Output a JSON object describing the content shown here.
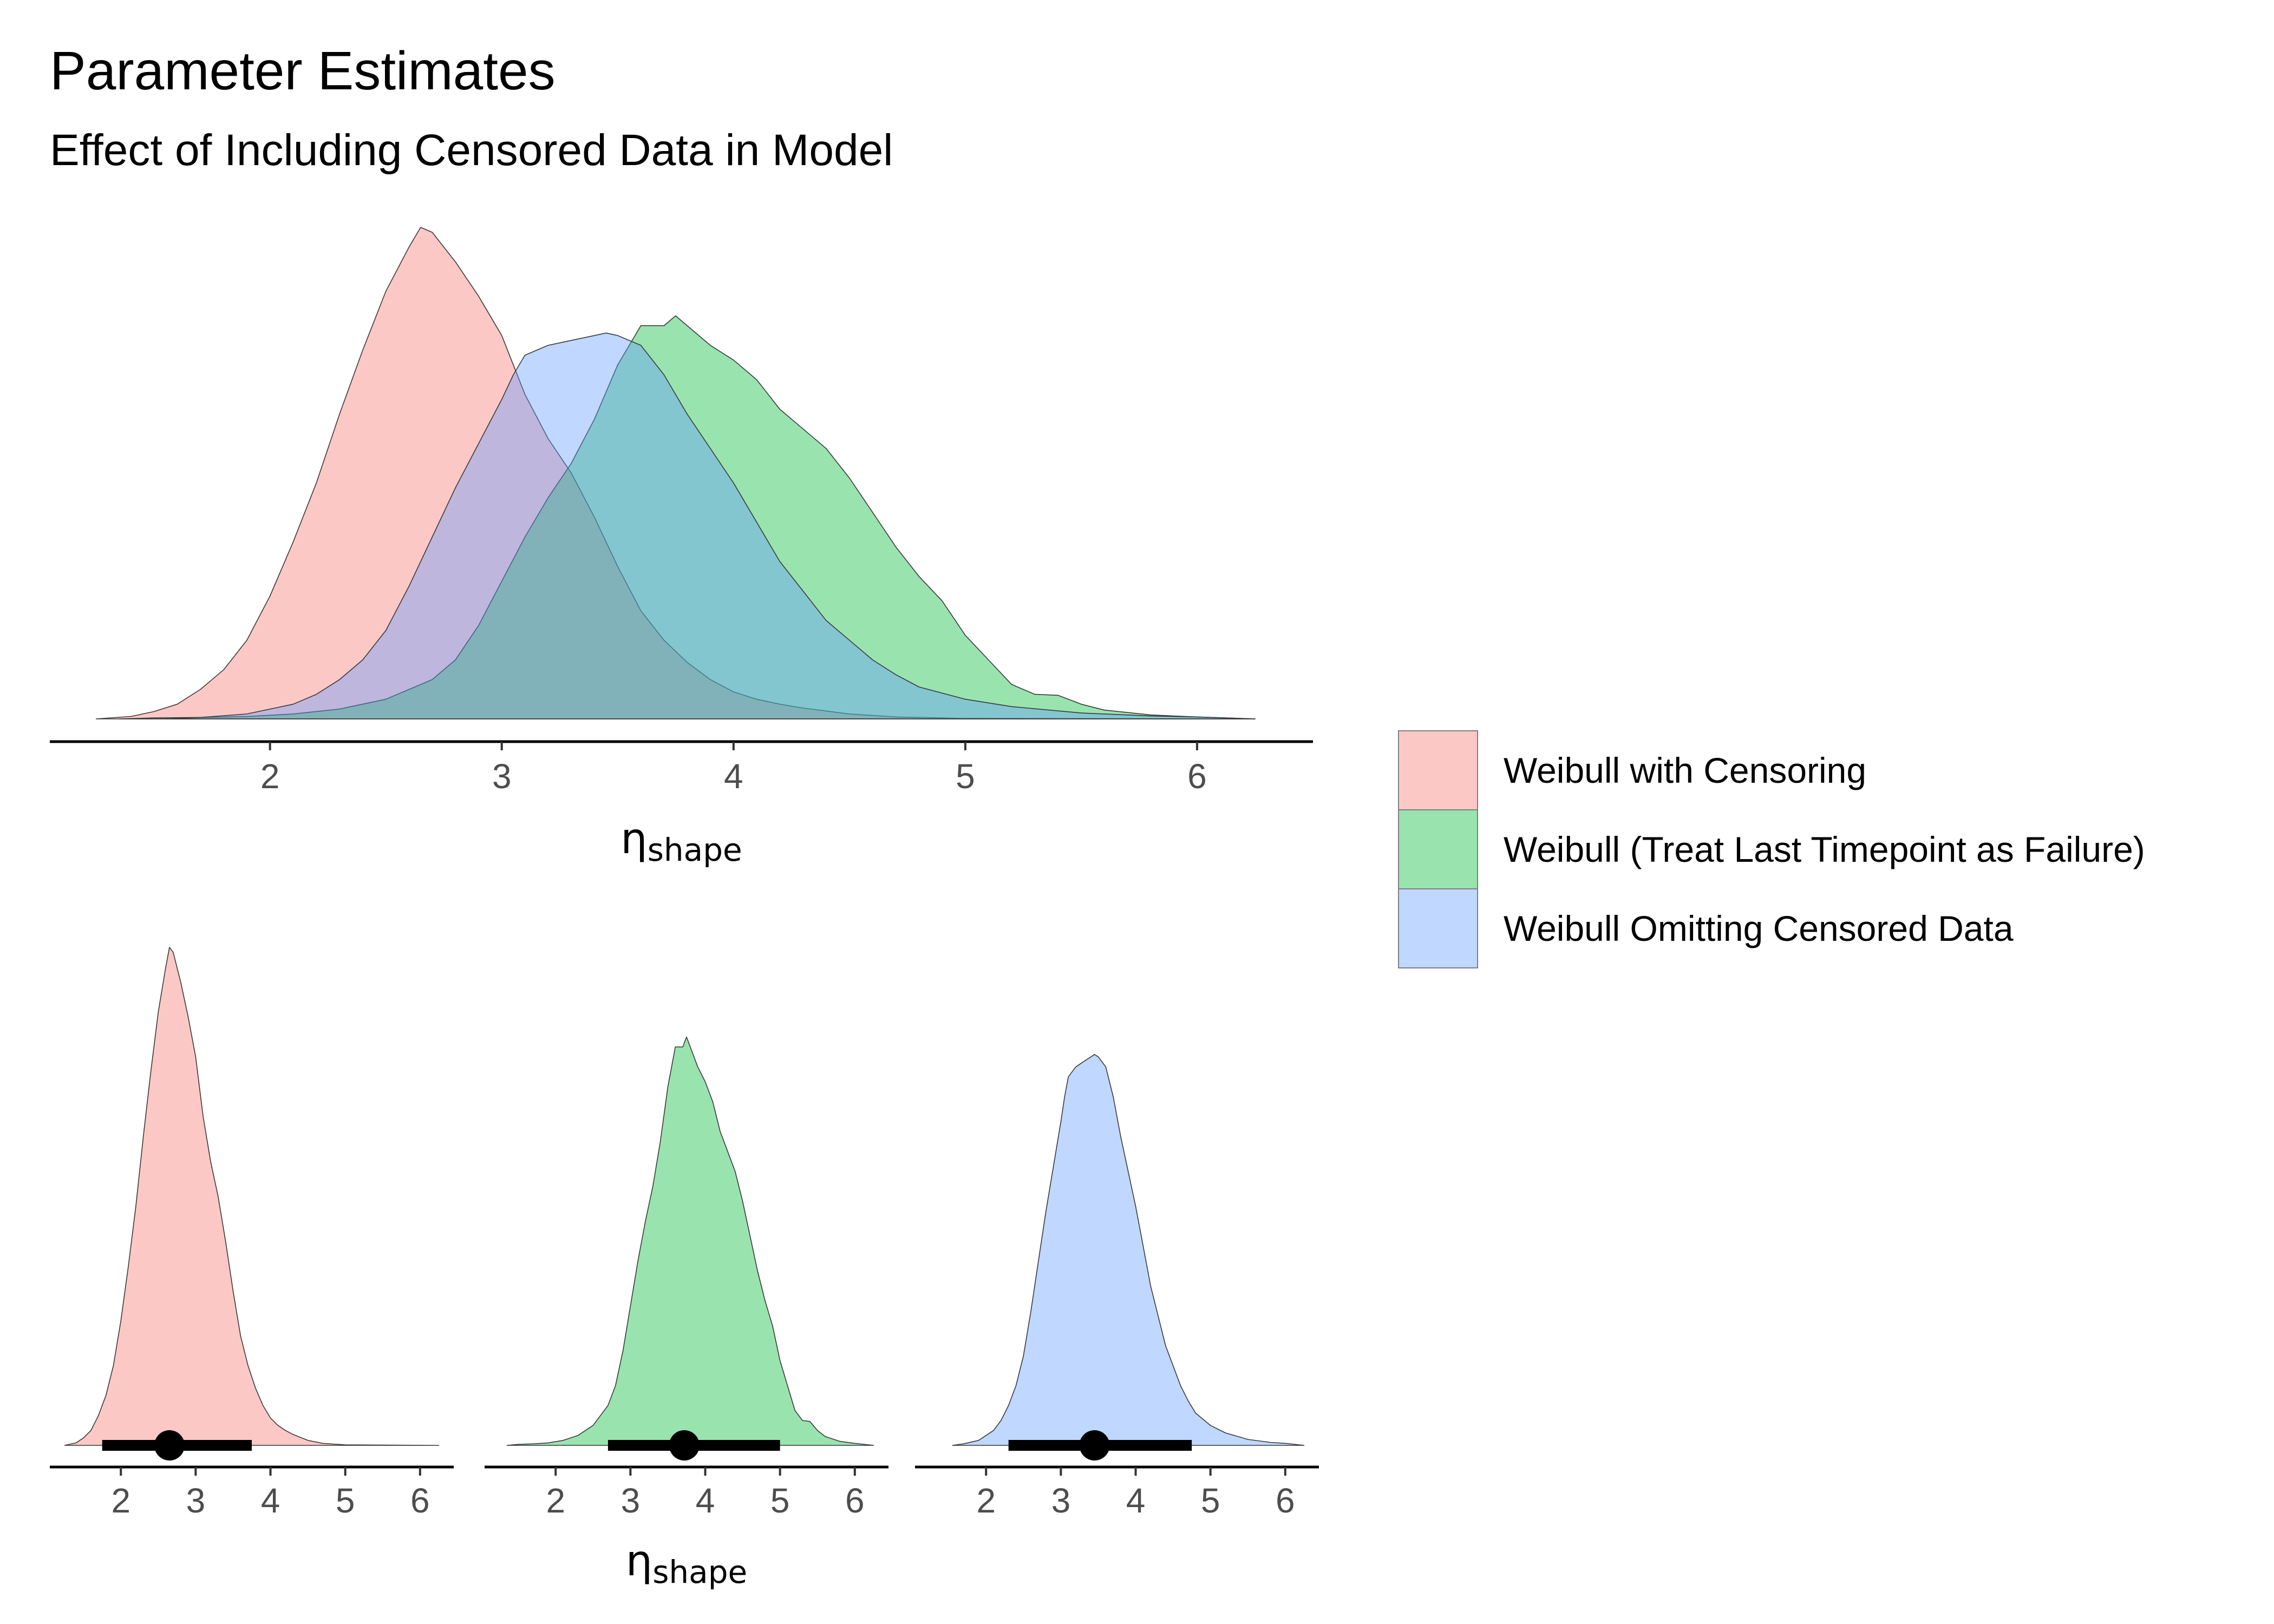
{
  "chart_data": {
    "type": "density",
    "title": "Parameter Estimates",
    "subtitle": "Effect of Including Censored Data in Model",
    "xlabel_symbol": "η",
    "xlabel_subscript": "shape",
    "legend_placement": "right",
    "grid": false,
    "colors": {
      "series_fills": [
        "#F8766D",
        "#00BA38",
        "#619CFF"
      ],
      "outline": "#3a3a3a",
      "axis": "#000000",
      "interval": "#000000"
    },
    "series": [
      {
        "name": "Weibull with Censoring",
        "x_range": [
          1.25,
          6.25
        ],
        "mode": 2.65,
        "median": 2.65,
        "interval": [
          1.75,
          3.75
        ],
        "density": [
          [
            1.25,
            0.0
          ],
          [
            1.4,
            0.005
          ],
          [
            1.5,
            0.015
          ],
          [
            1.6,
            0.03
          ],
          [
            1.7,
            0.06
          ],
          [
            1.8,
            0.1
          ],
          [
            1.9,
            0.16
          ],
          [
            2.0,
            0.25
          ],
          [
            2.1,
            0.36
          ],
          [
            2.2,
            0.48
          ],
          [
            2.3,
            0.62
          ],
          [
            2.4,
            0.75
          ],
          [
            2.5,
            0.87
          ],
          [
            2.6,
            0.96
          ],
          [
            2.65,
            1.0
          ],
          [
            2.7,
            0.99
          ],
          [
            2.8,
            0.93
          ],
          [
            2.9,
            0.86
          ],
          [
            3.0,
            0.78
          ],
          [
            3.1,
            0.66
          ],
          [
            3.2,
            0.57
          ],
          [
            3.3,
            0.5
          ],
          [
            3.4,
            0.41
          ],
          [
            3.5,
            0.31
          ],
          [
            3.6,
            0.22
          ],
          [
            3.7,
            0.16
          ],
          [
            3.8,
            0.115
          ],
          [
            3.9,
            0.08
          ],
          [
            4.0,
            0.055
          ],
          [
            4.1,
            0.04
          ],
          [
            4.2,
            0.03
          ],
          [
            4.3,
            0.022
          ],
          [
            4.5,
            0.01
          ],
          [
            4.7,
            0.004
          ],
          [
            5.0,
            0.001
          ],
          [
            6.25,
            0.0
          ]
        ]
      },
      {
        "name": "Weibull (Treat Last Timepoint as Failure)",
        "x_range": [
          1.35,
          6.25
        ],
        "mode": 3.72,
        "median": 3.72,
        "interval": [
          2.7,
          5.0
        ],
        "density": [
          [
            1.35,
            0.0
          ],
          [
            1.5,
            0.002
          ],
          [
            1.7,
            0.003
          ],
          [
            1.9,
            0.005
          ],
          [
            2.1,
            0.01
          ],
          [
            2.3,
            0.02
          ],
          [
            2.5,
            0.04
          ],
          [
            2.6,
            0.06
          ],
          [
            2.7,
            0.08
          ],
          [
            2.8,
            0.12
          ],
          [
            2.9,
            0.19
          ],
          [
            3.0,
            0.28
          ],
          [
            3.1,
            0.37
          ],
          [
            3.2,
            0.45
          ],
          [
            3.3,
            0.52
          ],
          [
            3.4,
            0.61
          ],
          [
            3.5,
            0.72
          ],
          [
            3.6,
            0.8
          ],
          [
            3.7,
            0.8
          ],
          [
            3.75,
            0.82
          ],
          [
            3.8,
            0.8
          ],
          [
            3.9,
            0.76
          ],
          [
            4.0,
            0.73
          ],
          [
            4.1,
            0.69
          ],
          [
            4.2,
            0.63
          ],
          [
            4.3,
            0.59
          ],
          [
            4.4,
            0.55
          ],
          [
            4.5,
            0.49
          ],
          [
            4.6,
            0.42
          ],
          [
            4.7,
            0.35
          ],
          [
            4.8,
            0.29
          ],
          [
            4.9,
            0.24
          ],
          [
            5.0,
            0.17
          ],
          [
            5.1,
            0.12
          ],
          [
            5.2,
            0.07
          ],
          [
            5.3,
            0.05
          ],
          [
            5.4,
            0.048
          ],
          [
            5.5,
            0.03
          ],
          [
            5.6,
            0.018
          ],
          [
            5.8,
            0.008
          ],
          [
            6.0,
            0.004
          ],
          [
            6.25,
            0.0
          ]
        ]
      },
      {
        "name": "Weibull Omitting Censored Data",
        "x_range": [
          1.55,
          6.25
        ],
        "mode": 3.45,
        "median": 3.45,
        "interval": [
          2.3,
          4.75
        ],
        "density": [
          [
            1.55,
            0.0
          ],
          [
            1.7,
            0.003
          ],
          [
            1.9,
            0.01
          ],
          [
            2.1,
            0.03
          ],
          [
            2.2,
            0.05
          ],
          [
            2.3,
            0.08
          ],
          [
            2.4,
            0.12
          ],
          [
            2.5,
            0.18
          ],
          [
            2.6,
            0.27
          ],
          [
            2.7,
            0.37
          ],
          [
            2.8,
            0.47
          ],
          [
            2.9,
            0.56
          ],
          [
            3.0,
            0.65
          ],
          [
            3.05,
            0.7
          ],
          [
            3.1,
            0.74
          ],
          [
            3.2,
            0.76
          ],
          [
            3.3,
            0.77
          ],
          [
            3.4,
            0.78
          ],
          [
            3.45,
            0.785
          ],
          [
            3.5,
            0.78
          ],
          [
            3.6,
            0.76
          ],
          [
            3.7,
            0.7
          ],
          [
            3.8,
            0.62
          ],
          [
            3.9,
            0.55
          ],
          [
            4.0,
            0.48
          ],
          [
            4.1,
            0.4
          ],
          [
            4.2,
            0.32
          ],
          [
            4.3,
            0.26
          ],
          [
            4.4,
            0.2
          ],
          [
            4.5,
            0.16
          ],
          [
            4.6,
            0.12
          ],
          [
            4.7,
            0.09
          ],
          [
            4.8,
            0.065
          ],
          [
            5.0,
            0.04
          ],
          [
            5.2,
            0.025
          ],
          [
            5.5,
            0.012
          ],
          [
            5.8,
            0.006
          ],
          [
            6.0,
            0.004
          ],
          [
            6.25,
            0.0
          ]
        ]
      }
    ],
    "top_panel": {
      "xlim": [
        1.05,
        6.5
      ],
      "xticks": [
        2,
        3,
        4,
        5,
        6
      ],
      "xtick_labels": [
        "2",
        "3",
        "4",
        "5",
        "6"
      ]
    },
    "bottom_panels": {
      "xlim": [
        1.05,
        6.45
      ],
      "xticks": [
        2,
        3,
        4,
        5,
        6
      ],
      "xtick_labels": [
        "2",
        "3",
        "4",
        "5",
        "6"
      ]
    }
  }
}
